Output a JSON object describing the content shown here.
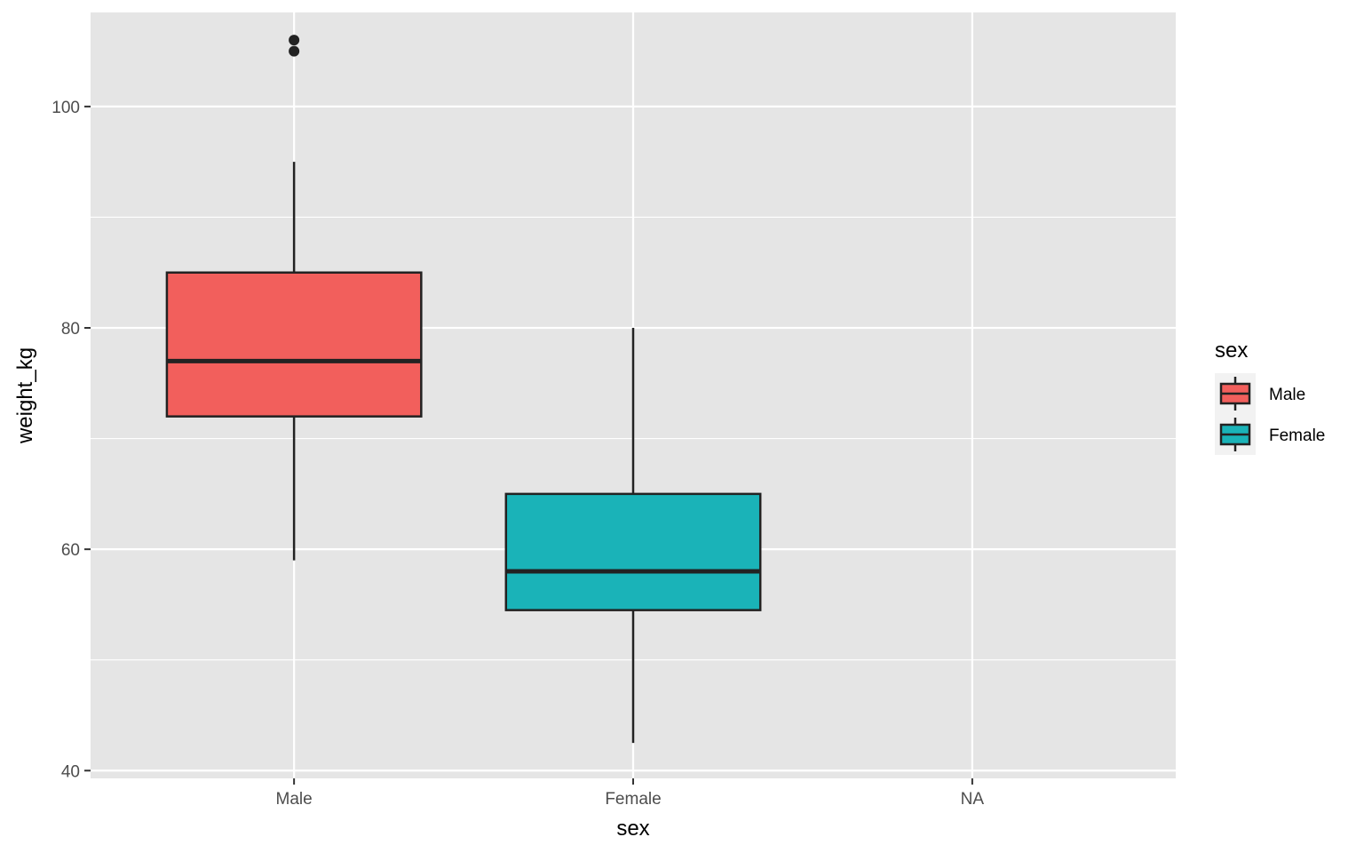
{
  "chart_data": {
    "type": "boxplot",
    "xlabel": "sex",
    "ylabel": "weight_kg",
    "categories": [
      "Male",
      "Female",
      "NA"
    ],
    "ylim": [
      39.3,
      108.5
    ],
    "yticks": [
      40,
      60,
      80,
      100
    ],
    "grid": true,
    "legend": {
      "title": "sex",
      "position": "right",
      "entries": [
        {
          "label": "Male",
          "color": "#F25F5C"
        },
        {
          "label": "Female",
          "color": "#1AB3B8"
        }
      ]
    },
    "boxes": [
      {
        "category": "Male",
        "whisker_low": 59,
        "q1": 72,
        "median": 77,
        "q3": 85,
        "whisker_high": 95,
        "outliers": [
          105,
          106
        ],
        "color": "#F25F5C"
      },
      {
        "category": "Female",
        "whisker_low": 42.5,
        "q1": 54.5,
        "median": 58,
        "q3": 65,
        "whisker_high": 80,
        "outliers": [],
        "color": "#1AB3B8"
      }
    ],
    "colors": {
      "panel_background": "#E5E5E5",
      "gridline": "#FFFFFF",
      "box_outline": "#222222"
    }
  }
}
